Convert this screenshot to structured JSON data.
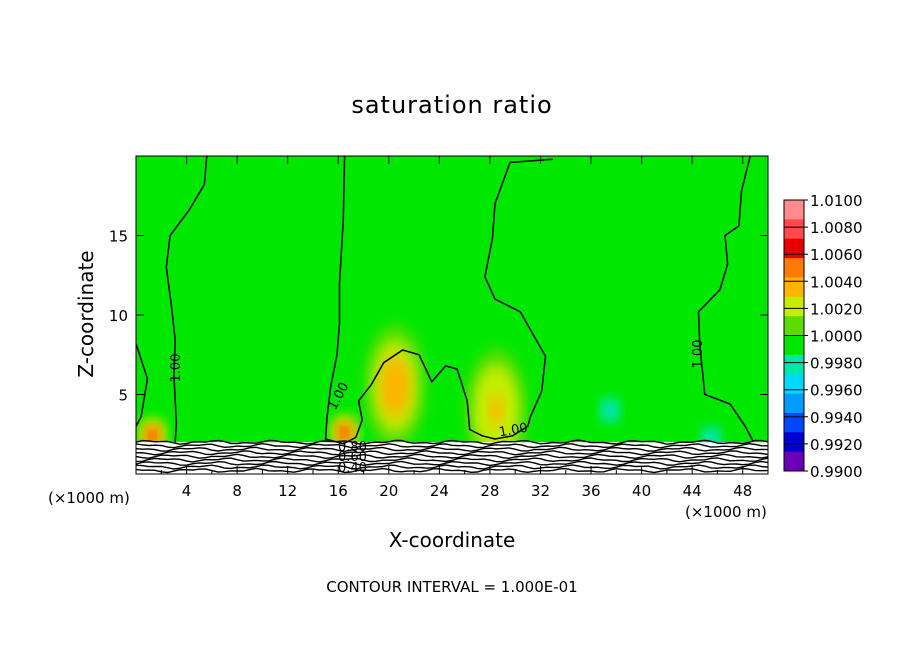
{
  "chart_data": {
    "type": "heatmap",
    "title": "saturation ratio",
    "xlabel": "X-coordinate",
    "ylabel": "Z-coordinate",
    "x_unit_label": "(×1000 m)",
    "x_unit_label_right": "(×1000 m)",
    "xlim": [
      0,
      50
    ],
    "ylim": [
      0,
      20
    ],
    "x_ticks": [
      4,
      8,
      12,
      16,
      20,
      24,
      28,
      32,
      36,
      40,
      44,
      48
    ],
    "y_ticks": [
      5,
      10,
      15
    ],
    "footer": "CONTOUR INTERVAL = 1.000E-01",
    "colorbar": {
      "levels": [
        "1.0100",
        "1.0080",
        "1.0060",
        "1.0040",
        "1.0020",
        "1.0000",
        "0.9980",
        "0.9960",
        "0.9940",
        "0.9920",
        "0.9900"
      ],
      "colors": [
        "#ff8c8c",
        "#ff4a4a",
        "#e80000",
        "#ff7a00",
        "#ffb400",
        "#c6ee00",
        "#5ade00",
        "#00e800",
        "#00e8a8",
        "#00d8ff",
        "#009cff",
        "#0048ff",
        "#0000d2",
        "#6a00b8"
      ]
    },
    "background_value": 1.0,
    "features": [
      {
        "type": "max",
        "x": 20.5,
        "z": 5.5,
        "value": 1.0045
      },
      {
        "type": "max",
        "x": 28.5,
        "z": 4.0,
        "value": 1.004
      },
      {
        "type": "max",
        "x": 16.5,
        "z": 2.6,
        "value": 1.0075
      },
      {
        "type": "max",
        "x": 1.3,
        "z": 2.4,
        "value": 1.007
      },
      {
        "type": "min",
        "x": 37.5,
        "z": 4.0,
        "value": 0.9965
      },
      {
        "type": "min",
        "x": 45.5,
        "z": 2.2,
        "value": 0.996
      }
    ],
    "contour_labels": [
      "1.00",
      "1.00",
      "1.00",
      "1.00",
      "0.80",
      "0.60",
      "0.40"
    ],
    "contours": [
      {
        "value": 1.0,
        "points": [
          [
            5.6,
            20
          ],
          [
            5.4,
            18.2
          ],
          [
            4.2,
            16.6
          ],
          [
            2.7,
            15
          ],
          [
            2.4,
            13
          ],
          [
            2.8,
            10.6
          ],
          [
            3.1,
            8.4
          ],
          [
            3.0,
            6.2
          ],
          [
            3.2,
            3.2
          ],
          [
            3.1,
            2.0
          ]
        ]
      },
      {
        "value": 1.0,
        "points": [
          [
            16.5,
            20
          ],
          [
            16.4,
            16
          ],
          [
            16.1,
            12
          ],
          [
            16.1,
            9.5
          ],
          [
            15.9,
            7.5
          ],
          [
            15.4,
            5.5
          ],
          [
            15.1,
            3.5
          ],
          [
            15.0,
            2.2
          ],
          [
            16.4,
            1.9
          ],
          [
            17.4,
            2.3
          ],
          [
            17.9,
            3.4
          ],
          [
            17.6,
            4.6
          ],
          [
            18.6,
            5.6
          ],
          [
            19.6,
            7.0
          ],
          [
            21.1,
            7.8
          ],
          [
            22.4,
            7.5
          ],
          [
            23.4,
            5.8
          ],
          [
            24.5,
            6.8
          ],
          [
            25.4,
            6.6
          ],
          [
            26.2,
            4.6
          ],
          [
            26.4,
            2.8
          ],
          [
            27.4,
            2.4
          ],
          [
            28.4,
            2.2
          ],
          [
            29.8,
            2.4
          ],
          [
            31.0,
            3.0
          ],
          [
            31.2,
            3.6
          ],
          [
            32.1,
            5.2
          ],
          [
            32.4,
            7.4
          ],
          [
            31.4,
            8.8
          ],
          [
            30.4,
            10.2
          ],
          [
            28.4,
            11.0
          ],
          [
            27.6,
            12.4
          ],
          [
            28.2,
            14.8
          ],
          [
            28.4,
            17.0
          ],
          [
            29.6,
            19.6
          ],
          [
            33.0,
            19.8
          ]
        ]
      },
      {
        "value": 1.0,
        "points": [
          [
            48.6,
            20
          ],
          [
            47.9,
            17.8
          ],
          [
            47.7,
            15.6
          ],
          [
            46.6,
            15.0
          ],
          [
            46.8,
            13.2
          ],
          [
            46.2,
            11.6
          ],
          [
            44.5,
            10.2
          ],
          [
            44.6,
            8.2
          ],
          [
            45.0,
            5.0
          ],
          [
            47.0,
            4.4
          ],
          [
            48.2,
            3.0
          ],
          [
            48.8,
            2.1
          ]
        ]
      },
      {
        "value": 1.0,
        "points": [
          [
            0,
            8.2
          ],
          [
            0.9,
            6.0
          ],
          [
            0.4,
            3.6
          ],
          [
            0,
            3.0
          ]
        ]
      }
    ]
  }
}
